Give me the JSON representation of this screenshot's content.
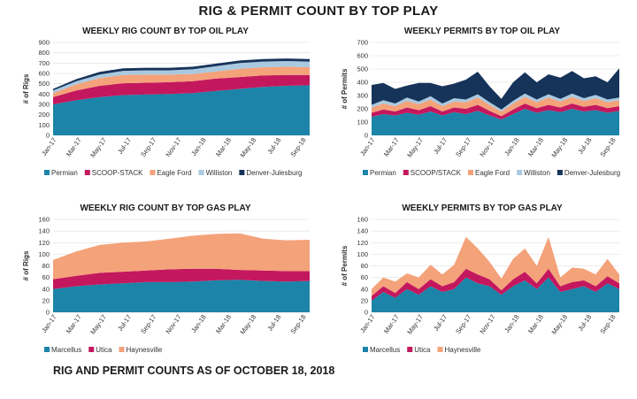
{
  "page": {
    "title": "RIG & PERMIT COUNT BY TOP PLAY",
    "footer": "RIG AND PERMIT COUNTS AS OF OCTOBER 18, 2018"
  },
  "colors": {
    "Permian": "#1b84a8",
    "SCOOP-STACK": "#c4185e",
    "Eagle Ford": "#f4a27a",
    "Williston": "#a9c9e0",
    "Denver-Julesburg": "#16335a",
    "Marcellus": "#1b84a8",
    "Utica": "#c4185e",
    "Haynesville": "#f4a27a"
  },
  "chart_data": [
    {
      "id": "oil-rigs",
      "type": "area",
      "title": "WEEKLY RIG COUNT BY TOP OIL PLAY",
      "ylabel": "# of Rigs",
      "ylim": [
        0,
        900
      ],
      "yticks": [
        0,
        100,
        200,
        300,
        400,
        500,
        600,
        700,
        800,
        900
      ],
      "x": [
        "Jan-17",
        "Mar-17",
        "May-17",
        "Jul-17",
        "Sep-17",
        "Nov-17",
        "Jan-18",
        "Mar-18",
        "May-18",
        "Jul-18",
        "Sep-18",
        "Oct-18"
      ],
      "xticks": [
        "Jan-17",
        "Mar-17",
        "May-17",
        "Jul-17",
        "Sep-17",
        "Nov-17",
        "Jan-18",
        "Mar-18",
        "May-18",
        "Jul-18",
        "Sep-18"
      ],
      "legend": [
        "Permian",
        "SCOOP-STACK",
        "Eagle Ford",
        "Williston",
        "Denver-Julesburg"
      ],
      "series": [
        {
          "name": "Permian",
          "values": [
            300,
            340,
            370,
            390,
            395,
            400,
            410,
            430,
            450,
            470,
            480,
            485
          ]
        },
        {
          "name": "SCOOP-STACK",
          "values": [
            70,
            95,
            110,
            115,
            115,
            115,
            115,
            120,
            115,
            110,
            105,
            100
          ]
        },
        {
          "name": "Eagle Ford",
          "values": [
            40,
            60,
            75,
            80,
            80,
            75,
            70,
            70,
            80,
            80,
            80,
            75
          ]
        },
        {
          "name": "Williston",
          "values": [
            25,
            30,
            35,
            40,
            40,
            40,
            45,
            50,
            55,
            55,
            55,
            55
          ]
        },
        {
          "name": "Denver-Julesburg",
          "values": [
            15,
            20,
            25,
            25,
            25,
            25,
            25,
            25,
            25,
            25,
            25,
            25
          ]
        }
      ]
    },
    {
      "id": "oil-permits",
      "type": "area",
      "title": "WEEKLY PERMITS BY TOP OIL PLAY",
      "ylabel": "# of Permits",
      "ylim": [
        0,
        700
      ],
      "yticks": [
        0,
        100,
        200,
        300,
        400,
        500,
        600,
        700
      ],
      "x": [
        "Jan-17",
        "Feb-17",
        "Mar-17",
        "Apr-17",
        "May-17",
        "Jun-17",
        "Jul-17",
        "Aug-17",
        "Sep-17",
        "Oct-17",
        "Nov-17",
        "Dec-17",
        "Jan-18",
        "Feb-18",
        "Mar-18",
        "Apr-18",
        "May-18",
        "Jun-18",
        "Jul-18",
        "Aug-18",
        "Sep-18",
        "Oct-18"
      ],
      "xticks": [
        "Jan-17",
        "Mar-17",
        "May-17",
        "Jul-17",
        "Sep-17",
        "Nov-17",
        "Jan-18",
        "Mar-18",
        "May-18",
        "Jul-18",
        "Sep-18"
      ],
      "legend": [
        "Permian",
        "SCOOP/STACK",
        "Eagle Ford",
        "Williston",
        "Denver-Julesburg"
      ],
      "series": [
        {
          "name": "Permian",
          "values": [
            140,
            160,
            150,
            170,
            155,
            180,
            150,
            175,
            160,
            185,
            150,
            120,
            160,
            200,
            170,
            190,
            175,
            200,
            180,
            190,
            170,
            185
          ]
        },
        {
          "name": "SCOOP/STACK",
          "values": [
            30,
            35,
            30,
            40,
            35,
            40,
            30,
            35,
            40,
            45,
            35,
            25,
            35,
            40,
            35,
            40,
            35,
            40,
            35,
            40,
            35,
            35
          ]
        },
        {
          "name": "Eagle Ford",
          "values": [
            40,
            45,
            40,
            50,
            45,
            50,
            40,
            45,
            50,
            55,
            45,
            35,
            45,
            50,
            45,
            55,
            45,
            50,
            45,
            50,
            45,
            45
          ]
        },
        {
          "name": "Williston",
          "values": [
            20,
            25,
            20,
            25,
            20,
            25,
            20,
            25,
            20,
            25,
            20,
            15,
            20,
            25,
            20,
            25,
            20,
            25,
            20,
            25,
            20,
            20
          ]
        },
        {
          "name": "Denver-Julesburg",
          "values": [
            150,
            130,
            110,
            90,
            140,
            100,
            130,
            110,
            150,
            170,
            120,
            80,
            140,
            160,
            130,
            150,
            160,
            170,
            150,
            140,
            130,
            220
          ]
        }
      ]
    },
    {
      "id": "gas-rigs",
      "type": "area",
      "title": "WEEKLY RIG COUNT BY TOP GAS PLAY",
      "ylabel": "# of Rigs",
      "ylim": [
        0,
        160
      ],
      "yticks": [
        0,
        20,
        40,
        60,
        80,
        100,
        120,
        140,
        160
      ],
      "x": [
        "Jan-17",
        "Mar-17",
        "May-17",
        "Jul-17",
        "Sep-17",
        "Nov-17",
        "Jan-18",
        "Mar-18",
        "May-18",
        "Jul-18",
        "Sep-18",
        "Oct-18"
      ],
      "xticks": [
        "Jan-17",
        "Mar-17",
        "May-17",
        "Jul-17",
        "Sep-17",
        "Nov-17",
        "Jan-18",
        "Mar-18",
        "May-18",
        "Jul-18",
        "Sep-18"
      ],
      "legend": [
        "Marcellus",
        "Utica",
        "Haynesville"
      ],
      "series": [
        {
          "name": "Marcellus",
          "values": [
            40,
            45,
            48,
            50,
            52,
            52,
            53,
            55,
            56,
            54,
            53,
            54
          ]
        },
        {
          "name": "Utica",
          "values": [
            17,
            18,
            20,
            20,
            20,
            22,
            22,
            20,
            17,
            18,
            18,
            17
          ]
        },
        {
          "name": "Haynesville",
          "values": [
            33,
            42,
            48,
            50,
            50,
            53,
            57,
            60,
            63,
            55,
            53,
            54
          ]
        }
      ]
    },
    {
      "id": "gas-permits",
      "type": "area",
      "title": "WEEKLY PERMITS BY TOP GAS PLAY",
      "ylabel": "# of Permits",
      "ylim": [
        0,
        160
      ],
      "yticks": [
        0,
        20,
        40,
        60,
        80,
        100,
        120,
        140,
        160
      ],
      "x": [
        "Jan-17",
        "Feb-17",
        "Mar-17",
        "Apr-17",
        "May-17",
        "Jun-17",
        "Jul-17",
        "Aug-17",
        "Sep-17",
        "Oct-17",
        "Nov-17",
        "Dec-17",
        "Jan-18",
        "Feb-18",
        "Mar-18",
        "Apr-18",
        "May-18",
        "Jun-18",
        "Jul-18",
        "Aug-18",
        "Sep-18",
        "Oct-18"
      ],
      "xticks": [
        "Jan-17",
        "Mar-17",
        "May-17",
        "Jul-17",
        "Sep-17",
        "Nov-17",
        "Jan-18",
        "Mar-18",
        "May-18",
        "Jul-18",
        "Sep-18"
      ],
      "legend": [
        "Marcellus",
        "Utica",
        "Haynesville"
      ],
      "series": [
        {
          "name": "Marcellus",
          "values": [
            20,
            35,
            25,
            40,
            30,
            45,
            35,
            40,
            60,
            50,
            45,
            30,
            45,
            55,
            40,
            60,
            35,
            40,
            45,
            35,
            50,
            40
          ]
        },
        {
          "name": "Utica",
          "values": [
            8,
            10,
            8,
            12,
            10,
            12,
            10,
            12,
            15,
            15,
            12,
            8,
            12,
            15,
            10,
            15,
            10,
            12,
            10,
            10,
            12,
            10
          ]
        },
        {
          "name": "Haynesville",
          "values": [
            12,
            15,
            20,
            15,
            20,
            25,
            20,
            30,
            55,
            45,
            30,
            20,
            35,
            40,
            30,
            55,
            15,
            25,
            20,
            20,
            30,
            15
          ]
        }
      ]
    }
  ]
}
